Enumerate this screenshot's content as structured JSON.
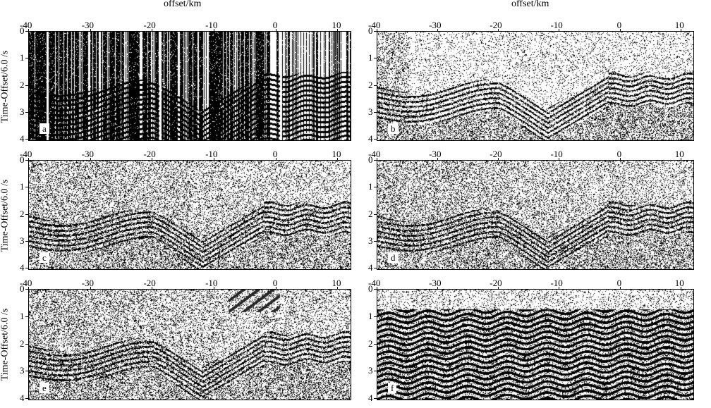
{
  "figure": {
    "top_x_label_left": "offset/km",
    "top_x_label_right": "offset/km",
    "y_label": "Time-Offset/6.0 /s"
  },
  "axes": {
    "x_ticks": [
      "-40",
      "-30",
      "-20",
      "-10",
      "0",
      "10"
    ],
    "y_ticks": [
      "0",
      "1",
      "2",
      "3",
      "4"
    ],
    "x_range": [
      -40,
      12
    ],
    "y_range": [
      0,
      4
    ]
  },
  "panels": [
    {
      "letter": "a"
    },
    {
      "letter": "b"
    },
    {
      "letter": "c"
    },
    {
      "letter": "d"
    },
    {
      "letter": "e"
    },
    {
      "letter": "f"
    }
  ]
}
